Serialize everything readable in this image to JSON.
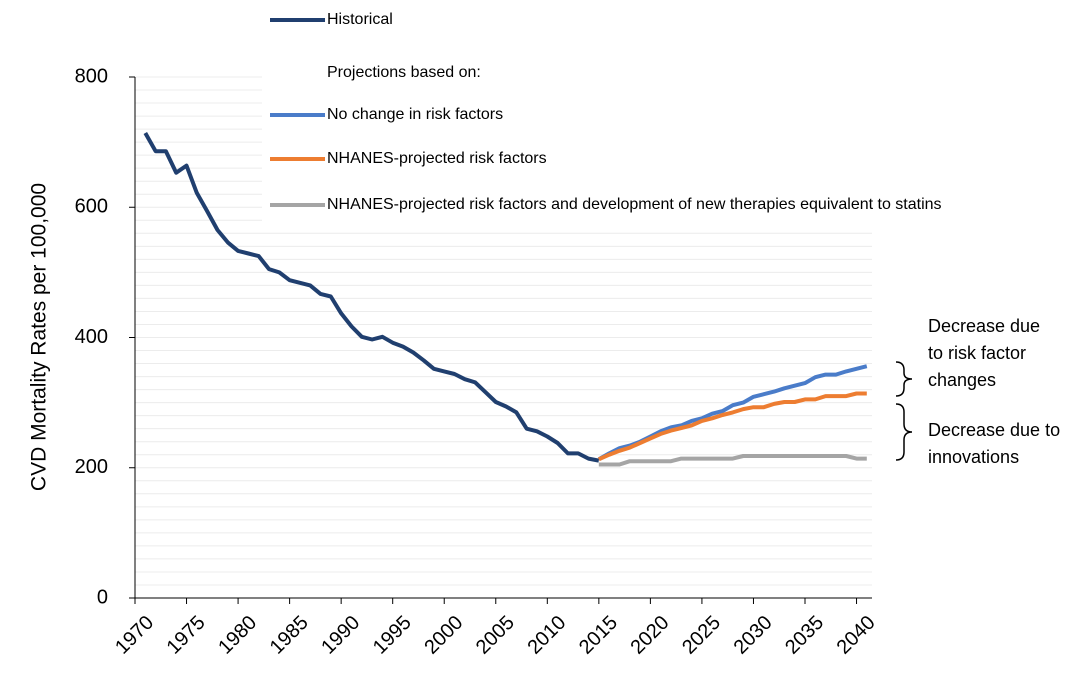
{
  "chart_data": {
    "type": "line",
    "y_label": "CVD Mortality Rates per 100,000",
    "legend_header": "Projections based on:",
    "x": [
      1971,
      1972,
      1973,
      1974,
      1975,
      1976,
      1977,
      1978,
      1979,
      1980,
      1981,
      1982,
      1983,
      1984,
      1985,
      1986,
      1987,
      1988,
      1989,
      1990,
      1991,
      1992,
      1993,
      1994,
      1995,
      1996,
      1997,
      1998,
      1999,
      2000,
      2001,
      2002,
      2003,
      2004,
      2005,
      2006,
      2007,
      2008,
      2009,
      2010,
      2011,
      2012,
      2013,
      2014,
      2015,
      2016,
      2017,
      2018,
      2019,
      2020,
      2021,
      2022,
      2023,
      2024,
      2025,
      2026,
      2027,
      2028,
      2029,
      2030,
      2031,
      2032,
      2033,
      2034,
      2035,
      2036,
      2037,
      2038,
      2039,
      2040,
      2041
    ],
    "series": [
      {
        "name": "Historical",
        "color": "#203f6f",
        "values": [
          714,
          686,
          686,
          653,
          664,
          622,
          594,
          565,
          546,
          533,
          529,
          525,
          505,
          500,
          488,
          484,
          480,
          467,
          463,
          437,
          417,
          401,
          397,
          401,
          392,
          386,
          377,
          365,
          352,
          348,
          344,
          336,
          331,
          316,
          301,
          294,
          285,
          260,
          256,
          248,
          238,
          222,
          222,
          214,
          211,
          null,
          null,
          null,
          null,
          null,
          null,
          null,
          null,
          null,
          null,
          null,
          null,
          null,
          null,
          null,
          null,
          null,
          null,
          null,
          null,
          null,
          null,
          null,
          null,
          null,
          null
        ]
      },
      {
        "name": "No change in risk factors",
        "color": "#4a7cc9",
        "values": [
          null,
          null,
          null,
          null,
          null,
          null,
          null,
          null,
          null,
          null,
          null,
          null,
          null,
          null,
          null,
          null,
          null,
          null,
          null,
          null,
          null,
          null,
          null,
          null,
          null,
          null,
          null,
          null,
          null,
          null,
          null,
          null,
          null,
          null,
          null,
          null,
          null,
          null,
          null,
          null,
          null,
          null,
          null,
          null,
          213,
          222,
          230,
          234,
          240,
          248,
          256,
          262,
          265,
          272,
          276,
          283,
          287,
          296,
          300,
          309,
          313,
          317,
          322,
          326,
          330,
          339,
          343,
          343,
          348,
          352,
          356
        ]
      },
      {
        "name": "NHANES-projected risk factors",
        "color": "#ed7d31",
        "values": [
          null,
          null,
          null,
          null,
          null,
          null,
          null,
          null,
          null,
          null,
          null,
          null,
          null,
          null,
          null,
          null,
          null,
          null,
          null,
          null,
          null,
          null,
          null,
          null,
          null,
          null,
          null,
          null,
          null,
          null,
          null,
          null,
          null,
          null,
          null,
          null,
          null,
          null,
          null,
          null,
          null,
          null,
          null,
          null,
          213,
          220,
          226,
          231,
          238,
          245,
          252,
          257,
          261,
          265,
          272,
          276,
          281,
          285,
          290,
          293,
          293,
          298,
          301,
          301,
          305,
          305,
          310,
          310,
          310,
          314,
          314
        ]
      },
      {
        "name": "NHANES-projected risk factors and development of new therapies equivalent to statins",
        "color": "#a5a5a5",
        "values": [
          null,
          null,
          null,
          null,
          null,
          null,
          null,
          null,
          null,
          null,
          null,
          null,
          null,
          null,
          null,
          null,
          null,
          null,
          null,
          null,
          null,
          null,
          null,
          null,
          null,
          null,
          null,
          null,
          null,
          null,
          null,
          null,
          null,
          null,
          null,
          null,
          null,
          null,
          null,
          null,
          null,
          null,
          null,
          null,
          205,
          205,
          205,
          210,
          210,
          210,
          210,
          210,
          214,
          214,
          214,
          214,
          214,
          214,
          218,
          218,
          218,
          218,
          218,
          218,
          218,
          218,
          218,
          218,
          218,
          214,
          214
        ]
      }
    ],
    "xlim": [
      1970,
      2041.5
    ],
    "xticks": [
      1970,
      1975,
      1980,
      1985,
      1990,
      1995,
      2000,
      2005,
      2010,
      2015,
      2020,
      2025,
      2030,
      2035,
      2040
    ],
    "ylim": [
      0,
      800
    ],
    "yticks": [
      0,
      200,
      400,
      600,
      800
    ],
    "grid": true,
    "ygrid": [
      20,
      40,
      60,
      80,
      100,
      120,
      140,
      160,
      180,
      200,
      220,
      240,
      260,
      280,
      300,
      320,
      340,
      360,
      380,
      400,
      420,
      440,
      460,
      480,
      500,
      520,
      540,
      560,
      580,
      600,
      620,
      640,
      660,
      680,
      700,
      720,
      740,
      760,
      780,
      800
    ],
    "annotations": [
      {
        "lines": [
          "Decrease due",
          "to risk factor",
          "changes"
        ]
      },
      {
        "lines": [
          "Decrease due to",
          "innovations"
        ]
      }
    ]
  }
}
